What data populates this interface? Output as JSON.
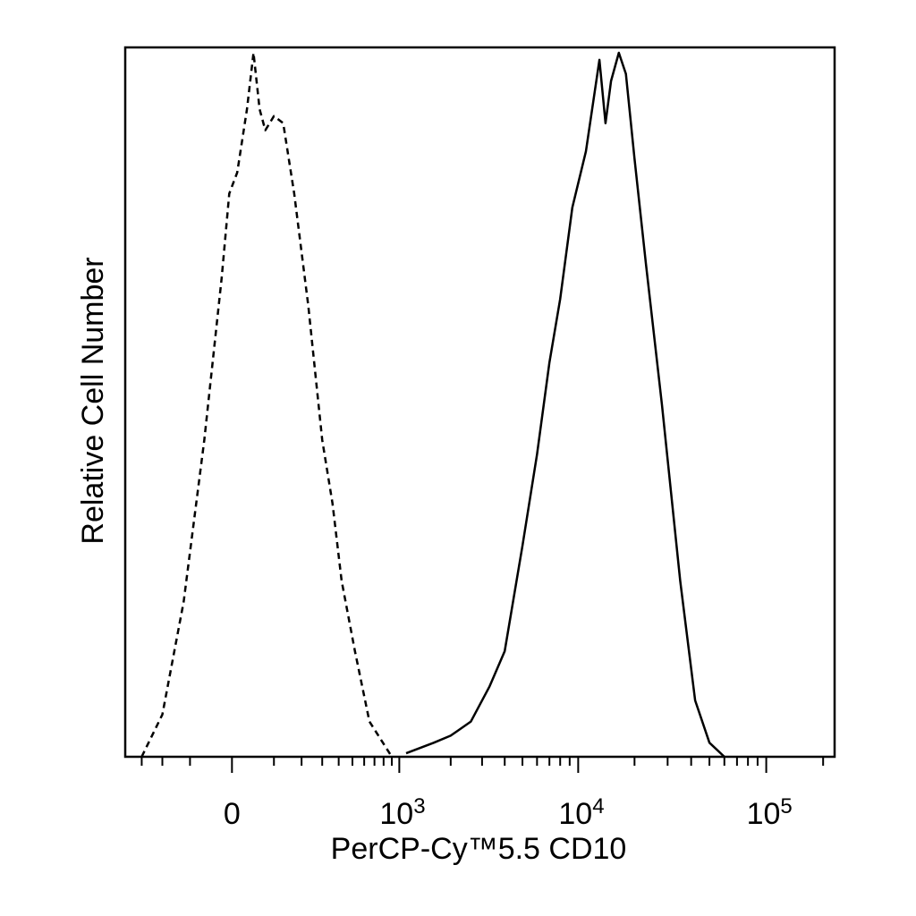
{
  "chart_data": {
    "type": "line",
    "title": "",
    "xlabel": "PerCP-Cy™5.5 CD10",
    "ylabel": "Relative Cell Number",
    "x_scale": "biexponential",
    "xlim": [
      -400,
      230000
    ],
    "ylim": [
      0,
      100
    ],
    "grid": false,
    "legend": "none",
    "x_tick_labels": [
      {
        "value": 0,
        "base": "0",
        "exp": ""
      },
      {
        "value": 1000,
        "base": "10",
        "exp": "3"
      },
      {
        "value": 10000,
        "base": "10",
        "exp": "4"
      },
      {
        "value": 100000,
        "base": "10",
        "exp": "5"
      }
    ],
    "series": [
      {
        "style": "dashed",
        "color": "#000000",
        "points": [
          [
            -300,
            0
          ],
          [
            -200,
            6
          ],
          [
            -120,
            22
          ],
          [
            -60,
            45
          ],
          [
            -20,
            68
          ],
          [
            -5,
            80
          ],
          [
            10,
            83
          ],
          [
            30,
            92
          ],
          [
            45,
            100
          ],
          [
            60,
            92
          ],
          [
            75,
            89
          ],
          [
            100,
            91
          ],
          [
            130,
            90
          ],
          [
            170,
            80
          ],
          [
            230,
            64
          ],
          [
            300,
            45
          ],
          [
            360,
            36
          ],
          [
            420,
            25
          ],
          [
            520,
            15
          ],
          [
            650,
            5
          ],
          [
            900,
            0
          ]
        ]
      },
      {
        "style": "solid",
        "color": "#000000",
        "points": [
          [
            1100,
            0.5
          ],
          [
            1600,
            2
          ],
          [
            2000,
            3
          ],
          [
            2600,
            5
          ],
          [
            3300,
            10
          ],
          [
            4000,
            15
          ],
          [
            5000,
            30
          ],
          [
            6000,
            43
          ],
          [
            7000,
            56
          ],
          [
            8000,
            65
          ],
          [
            9300,
            78
          ],
          [
            11000,
            86
          ],
          [
            13000,
            99
          ],
          [
            14000,
            90
          ],
          [
            15000,
            96
          ],
          [
            16500,
            100
          ],
          [
            18000,
            97
          ],
          [
            20000,
            85
          ],
          [
            23000,
            70
          ],
          [
            28000,
            50
          ],
          [
            35000,
            25
          ],
          [
            42000,
            8
          ],
          [
            50000,
            2
          ],
          [
            60000,
            0
          ]
        ]
      }
    ]
  }
}
